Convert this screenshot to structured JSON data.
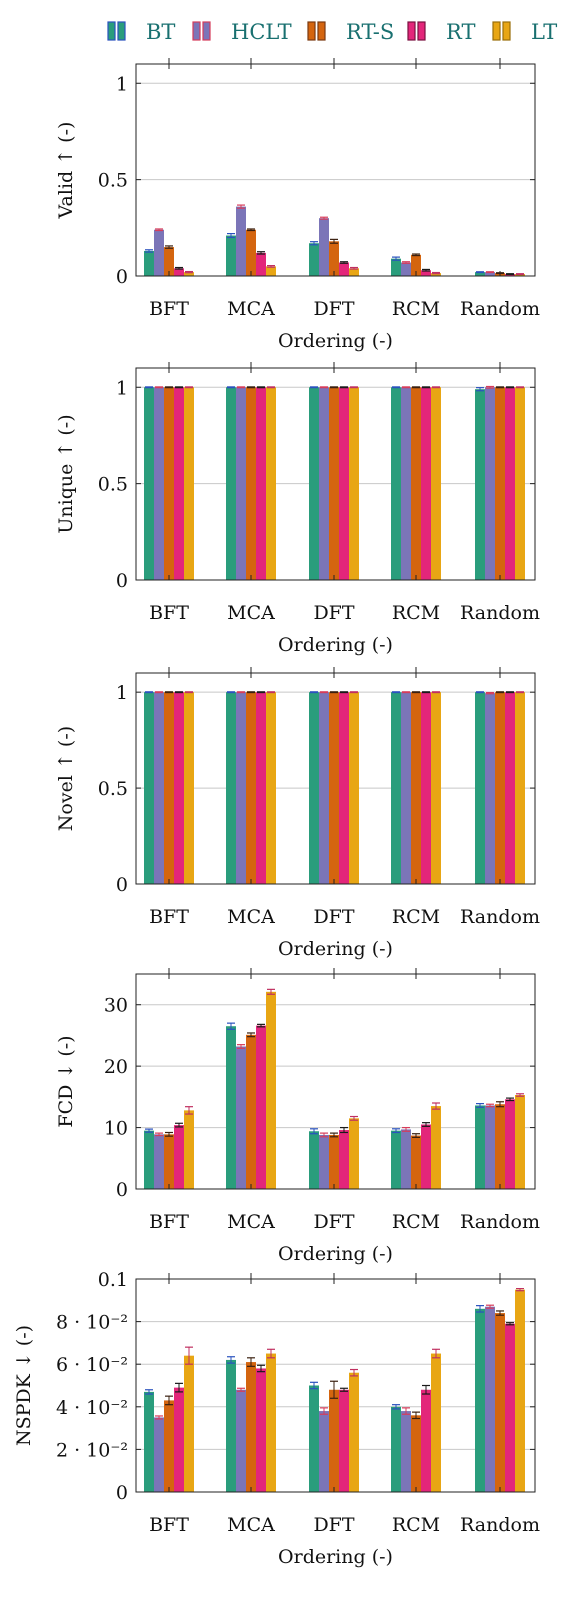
{
  "legend": {
    "series": [
      {
        "name": "BT",
        "color": "#2a9d7c",
        "edge": "#2a52be"
      },
      {
        "name": "HCLT",
        "color": "#7b75b8",
        "edge": "#d63c5b"
      },
      {
        "name": "RT-S",
        "color": "#d4650f",
        "edge": "#7a3a10"
      },
      {
        "name": "RT",
        "color": "#e3267a",
        "edge": "#7a1040"
      },
      {
        "name": "LT",
        "color": "#e8a614",
        "edge": "#9a6e0a"
      }
    ],
    "label_color": "#197070"
  },
  "chart_data": [
    {
      "type": "bar",
      "categories": [
        "BFT",
        "MCA",
        "DFT",
        "RCM",
        "Random"
      ],
      "xlabel": "Ordering (-)",
      "ylabel": "Valid ↑ (-)",
      "ylim": [
        0,
        1.1
      ],
      "yticks": [
        0,
        0.5,
        1
      ],
      "ytick_labels": [
        "0",
        "0.5",
        "1"
      ],
      "grid": true,
      "series": [
        {
          "name": "BT",
          "values": [
            0.13,
            0.21,
            0.17,
            0.09,
            0.02
          ],
          "errors": [
            0.006,
            0.01,
            0.008,
            0.008,
            0.002
          ]
        },
        {
          "name": "HCLT",
          "values": [
            0.24,
            0.36,
            0.3,
            0.07,
            0.02
          ],
          "errors": [
            0.004,
            0.008,
            0.005,
            0.004,
            0.002
          ]
        },
        {
          "name": "RT-S",
          "values": [
            0.15,
            0.24,
            0.18,
            0.11,
            0.015
          ],
          "errors": [
            0.006,
            0.004,
            0.01,
            0.004,
            0.002
          ]
        },
        {
          "name": "RT",
          "values": [
            0.04,
            0.12,
            0.07,
            0.03,
            0.01
          ],
          "errors": [
            0.004,
            0.006,
            0.004,
            0.004,
            0.002
          ]
        },
        {
          "name": "LT",
          "values": [
            0.02,
            0.05,
            0.04,
            0.015,
            0.01
          ],
          "errors": [
            0.003,
            0.004,
            0.004,
            0.003,
            0.002
          ]
        }
      ]
    },
    {
      "type": "bar",
      "categories": [
        "BFT",
        "MCA",
        "DFT",
        "RCM",
        "Random"
      ],
      "xlabel": "Ordering (-)",
      "ylabel": "Unique ↑ (-)",
      "ylim": [
        0,
        1.1
      ],
      "yticks": [
        0,
        0.5,
        1
      ],
      "ytick_labels": [
        "0",
        "0.5",
        "1"
      ],
      "grid": true,
      "series": [
        {
          "name": "BT",
          "values": [
            1,
            1,
            1,
            1,
            0.99
          ],
          "errors": [
            0.002,
            0.002,
            0.002,
            0.002,
            0.008
          ]
        },
        {
          "name": "HCLT",
          "values": [
            1,
            1,
            1,
            1,
            1
          ],
          "errors": [
            0.002,
            0.002,
            0.002,
            0.002,
            0.004
          ]
        },
        {
          "name": "RT-S",
          "values": [
            1,
            1,
            1,
            1,
            1
          ],
          "errors": [
            0.002,
            0.002,
            0.002,
            0.002,
            0.002
          ]
        },
        {
          "name": "RT",
          "values": [
            1,
            1,
            1,
            1,
            1
          ],
          "errors": [
            0.002,
            0.002,
            0.002,
            0.002,
            0.002
          ]
        },
        {
          "name": "LT",
          "values": [
            1,
            1,
            1,
            1,
            1
          ],
          "errors": [
            0.002,
            0.002,
            0.002,
            0.002,
            0.002
          ]
        }
      ]
    },
    {
      "type": "bar",
      "categories": [
        "BFT",
        "MCA",
        "DFT",
        "RCM",
        "Random"
      ],
      "xlabel": "Ordering (-)",
      "ylabel": "Novel ↑ (-)",
      "ylim": [
        0,
        1.1
      ],
      "yticks": [
        0,
        0.5,
        1
      ],
      "ytick_labels": [
        "0",
        "0.5",
        "1"
      ],
      "grid": true,
      "series": [
        {
          "name": "BT",
          "values": [
            1,
            1,
            1,
            1,
            1
          ],
          "errors": [
            0.002,
            0.002,
            0.002,
            0.002,
            0.002
          ]
        },
        {
          "name": "HCLT",
          "values": [
            1,
            1,
            1,
            1,
            0.995
          ],
          "errors": [
            0.002,
            0.002,
            0.002,
            0.002,
            0.003
          ]
        },
        {
          "name": "RT-S",
          "values": [
            1,
            1,
            1,
            1,
            1
          ],
          "errors": [
            0.002,
            0.002,
            0.002,
            0.002,
            0.002
          ]
        },
        {
          "name": "RT",
          "values": [
            1,
            1,
            1,
            1,
            1
          ],
          "errors": [
            0.002,
            0.002,
            0.002,
            0.002,
            0.002
          ]
        },
        {
          "name": "LT",
          "values": [
            1,
            1,
            1,
            1,
            1
          ],
          "errors": [
            0.002,
            0.002,
            0.002,
            0.002,
            0.002
          ]
        }
      ]
    },
    {
      "type": "bar",
      "categories": [
        "BFT",
        "MCA",
        "DFT",
        "RCM",
        "Random"
      ],
      "xlabel": "Ordering (-)",
      "ylabel": "FCD ↓ (-)",
      "ylim": [
        0,
        35
      ],
      "yticks": [
        0,
        10,
        20,
        30
      ],
      "ytick_labels": [
        "0",
        "10",
        "20",
        "30"
      ],
      "grid": true,
      "series": [
        {
          "name": "BT",
          "values": [
            9.5,
            26.5,
            9.4,
            9.5,
            13.6
          ],
          "errors": [
            0.25,
            0.5,
            0.4,
            0.3,
            0.3
          ]
        },
        {
          "name": "HCLT",
          "values": [
            8.9,
            23.2,
            8.8,
            9.7,
            13.6
          ],
          "errors": [
            0.2,
            0.3,
            0.3,
            0.3,
            0.2
          ]
        },
        {
          "name": "RT-S",
          "values": [
            8.9,
            25.1,
            8.8,
            8.7,
            13.8
          ],
          "errors": [
            0.3,
            0.3,
            0.3,
            0.3,
            0.4
          ]
        },
        {
          "name": "RT",
          "values": [
            10.4,
            26.6,
            9.6,
            10.5,
            14.6
          ],
          "errors": [
            0.3,
            0.2,
            0.4,
            0.3,
            0.2
          ]
        },
        {
          "name": "LT",
          "values": [
            12.8,
            32.1,
            11.5,
            13.5,
            15.3
          ],
          "errors": [
            0.6,
            0.4,
            0.3,
            0.5,
            0.2
          ]
        }
      ]
    },
    {
      "type": "bar",
      "categories": [
        "BFT",
        "MCA",
        "DFT",
        "RCM",
        "Random"
      ],
      "xlabel": "Ordering (-)",
      "ylabel": "NSPDK ↓ (-)",
      "ylim": [
        0,
        0.1
      ],
      "yticks": [
        0,
        0.02,
        0.04,
        0.06,
        0.08,
        0.1
      ],
      "ytick_labels": [
        "0",
        "2 · 10⁻²",
        "4 · 10⁻²",
        "6 · 10⁻²",
        "8 · 10⁻²",
        "0.1"
      ],
      "grid": true,
      "series": [
        {
          "name": "BT",
          "values": [
            0.047,
            0.062,
            0.05,
            0.04,
            0.086
          ],
          "errors": [
            0.001,
            0.0015,
            0.0015,
            0.001,
            0.0015
          ]
        },
        {
          "name": "HCLT",
          "values": [
            0.035,
            0.048,
            0.038,
            0.038,
            0.087
          ],
          "errors": [
            0.0007,
            0.0007,
            0.0015,
            0.0015,
            0.0007
          ]
        },
        {
          "name": "RT-S",
          "values": [
            0.043,
            0.061,
            0.048,
            0.036,
            0.084
          ],
          "errors": [
            0.002,
            0.002,
            0.004,
            0.0015,
            0.001
          ]
        },
        {
          "name": "RT",
          "values": [
            0.049,
            0.058,
            0.048,
            0.048,
            0.079
          ],
          "errors": [
            0.002,
            0.0015,
            0.0007,
            0.002,
            0.0005
          ]
        },
        {
          "name": "LT",
          "values": [
            0.064,
            0.065,
            0.056,
            0.065,
            0.095
          ],
          "errors": [
            0.004,
            0.002,
            0.0015,
            0.002,
            0.0005
          ]
        }
      ]
    }
  ]
}
